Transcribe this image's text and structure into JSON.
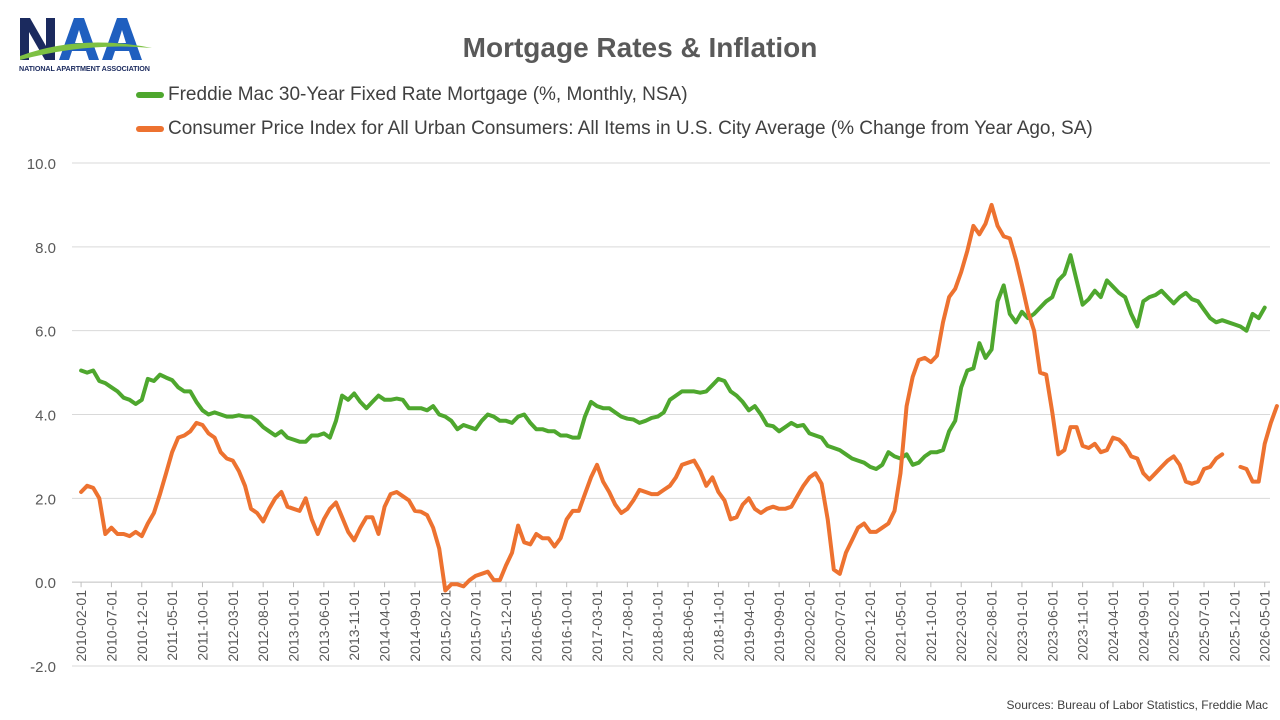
{
  "logo": {
    "name": "NAA",
    "tagline": "NATIONAL APARTMENT ASSOCIATION",
    "colors": {
      "navy": "#1b2a5e",
      "blue": "#1f5fbf",
      "green": "#7dc142"
    }
  },
  "chart_data": {
    "type": "line",
    "title": "Mortgage Rates & Inflation",
    "xlabel": "",
    "ylabel": "",
    "ylim": [
      -2,
      10
    ],
    "yticks": [
      "-2.0",
      "0.0",
      "2.0",
      "4.0",
      "6.0",
      "8.0",
      "10.0"
    ],
    "xticks": [
      "2010-02-01",
      "2010-07-01",
      "2010-12-01",
      "2011-05-01",
      "2011-10-01",
      "2012-03-01",
      "2012-08-01",
      "2013-01-01",
      "2013-06-01",
      "2013-11-01",
      "2014-04-01",
      "2014-09-01",
      "2015-02-01",
      "2015-07-01",
      "2015-12-01",
      "2016-05-01",
      "2016-10-01",
      "2017-03-01",
      "2017-08-01",
      "2018-01-01",
      "2018-06-01",
      "2018-11-01",
      "2019-04-01",
      "2019-09-01",
      "2020-02-01",
      "2020-07-01",
      "2020-12-01",
      "2021-05-01",
      "2021-10-01",
      "2022-03-01",
      "2022-08-01",
      "2023-01-01",
      "2023-06-01",
      "2023-11-01",
      "2024-04-01",
      "2024-09-01",
      "2025-02-01",
      "2025-07-01",
      "2025-12-01",
      "2026-05-01"
    ],
    "x_start": "2010-01-01",
    "grid": true,
    "legend_position": "top-left",
    "series": [
      {
        "name": "Freddie Mac 30-Year Fixed Rate Mortgage (%, Monthly, NSA)",
        "color": "#4ea72e",
        "values": [
          5.05,
          5.0,
          5.05,
          4.8,
          4.75,
          4.65,
          4.55,
          4.4,
          4.35,
          4.25,
          4.35,
          4.85,
          4.8,
          4.95,
          4.88,
          4.82,
          4.65,
          4.55,
          4.55,
          4.3,
          4.1,
          4.0,
          4.05,
          4.0,
          3.95,
          3.95,
          3.98,
          3.95,
          3.95,
          3.85,
          3.7,
          3.6,
          3.5,
          3.6,
          3.45,
          3.4,
          3.35,
          3.35,
          3.5,
          3.5,
          3.55,
          3.45,
          3.85,
          4.45,
          4.35,
          4.5,
          4.3,
          4.15,
          4.3,
          4.45,
          4.35,
          4.35,
          4.38,
          4.35,
          4.15,
          4.15,
          4.15,
          4.1,
          4.2,
          4.0,
          3.95,
          3.85,
          3.65,
          3.75,
          3.7,
          3.65,
          3.85,
          4.0,
          3.95,
          3.85,
          3.85,
          3.8,
          3.95,
          4.0,
          3.8,
          3.65,
          3.65,
          3.6,
          3.6,
          3.5,
          3.5,
          3.45,
          3.45,
          3.95,
          4.3,
          4.2,
          4.15,
          4.15,
          4.05,
          3.95,
          3.9,
          3.88,
          3.8,
          3.85,
          3.92,
          3.95,
          4.05,
          4.35,
          4.45,
          4.55,
          4.55,
          4.55,
          4.52,
          4.55,
          4.7,
          4.85,
          4.8,
          4.55,
          4.45,
          4.3,
          4.1,
          4.2,
          4.0,
          3.75,
          3.72,
          3.6,
          3.7,
          3.8,
          3.72,
          3.75,
          3.55,
          3.5,
          3.45,
          3.25,
          3.2,
          3.15,
          3.05,
          2.95,
          2.9,
          2.85,
          2.75,
          2.7,
          2.8,
          3.1,
          3.0,
          2.95,
          3.05,
          2.8,
          2.85,
          3.0,
          3.1,
          3.1,
          3.15,
          3.6,
          3.85,
          4.65,
          5.05,
          5.1,
          5.7,
          5.35,
          5.55,
          6.7,
          7.08,
          6.4,
          6.2,
          6.45,
          6.3,
          6.4,
          6.55,
          6.7,
          6.8,
          7.2,
          7.35,
          7.8,
          7.2,
          6.62,
          6.75,
          6.95,
          6.8,
          7.2,
          7.05,
          6.9,
          6.8,
          6.4,
          6.1,
          6.7,
          6.8,
          6.85,
          6.95,
          6.8,
          6.65,
          6.8,
          6.9,
          6.75,
          6.7,
          6.5,
          6.3,
          6.2,
          6.25,
          6.2,
          6.15,
          6.1,
          6.0,
          6.4,
          6.3,
          6.55
        ]
      },
      {
        "name": "Consumer Price Index for All Urban Consumers: All Items in U.S. City Average (% Change from Year Ago, SA)",
        "color": "#ed7230",
        "values": [
          2.15,
          2.3,
          2.25,
          2.0,
          1.15,
          1.3,
          1.15,
          1.15,
          1.1,
          1.2,
          1.1,
          1.4,
          1.65,
          2.1,
          2.6,
          3.1,
          3.45,
          3.5,
          3.6,
          3.8,
          3.75,
          3.55,
          3.45,
          3.1,
          2.95,
          2.9,
          2.65,
          2.3,
          1.75,
          1.65,
          1.45,
          1.75,
          2.0,
          2.15,
          1.8,
          1.75,
          1.7,
          2.0,
          1.5,
          1.15,
          1.5,
          1.75,
          1.9,
          1.55,
          1.2,
          1.0,
          1.3,
          1.55,
          1.55,
          1.15,
          1.8,
          2.1,
          2.15,
          2.05,
          1.95,
          1.7,
          1.68,
          1.6,
          1.3,
          0.8,
          -0.2,
          -0.05,
          -0.05,
          -0.1,
          0.05,
          0.15,
          0.2,
          0.25,
          0.05,
          0.05,
          0.4,
          0.7,
          1.35,
          0.95,
          0.9,
          1.15,
          1.05,
          1.05,
          0.85,
          1.05,
          1.5,
          1.7,
          1.7,
          2.1,
          2.5,
          2.8,
          2.4,
          2.15,
          1.85,
          1.65,
          1.75,
          1.95,
          2.2,
          2.15,
          2.1,
          2.1,
          2.2,
          2.3,
          2.5,
          2.8,
          2.85,
          2.9,
          2.65,
          2.3,
          2.5,
          2.15,
          1.95,
          1.5,
          1.55,
          1.85,
          2.0,
          1.75,
          1.65,
          1.75,
          1.8,
          1.75,
          1.75,
          1.8,
          2.05,
          2.3,
          2.5,
          2.6,
          2.35,
          1.5,
          0.3,
          0.2,
          0.7,
          1.0,
          1.3,
          1.4,
          1.2,
          1.2,
          1.3,
          1.4,
          1.7,
          2.6,
          4.2,
          4.9,
          5.3,
          5.35,
          5.25,
          5.4,
          6.2,
          6.8,
          7.0,
          7.4,
          7.9,
          8.5,
          8.3,
          8.55,
          9.0,
          8.5,
          8.25,
          8.2,
          7.7,
          7.1,
          6.45,
          6.0,
          5.0,
          4.95,
          4.05,
          3.05,
          3.15,
          3.7,
          3.7,
          3.25,
          3.2,
          3.3,
          3.1,
          3.15,
          3.45,
          3.4,
          3.25,
          3.0,
          2.95,
          2.6,
          2.45,
          2.6,
          2.75,
          2.9,
          3.0,
          2.8,
          2.4,
          2.35,
          2.4,
          2.7,
          2.75,
          2.95,
          3.05,
          null,
          null,
          2.75,
          2.7,
          2.4,
          2.4,
          3.3,
          3.8,
          4.2
        ]
      }
    ]
  },
  "source_note": "Sources: Bureau of Labor Statistics, Freddie Mac"
}
